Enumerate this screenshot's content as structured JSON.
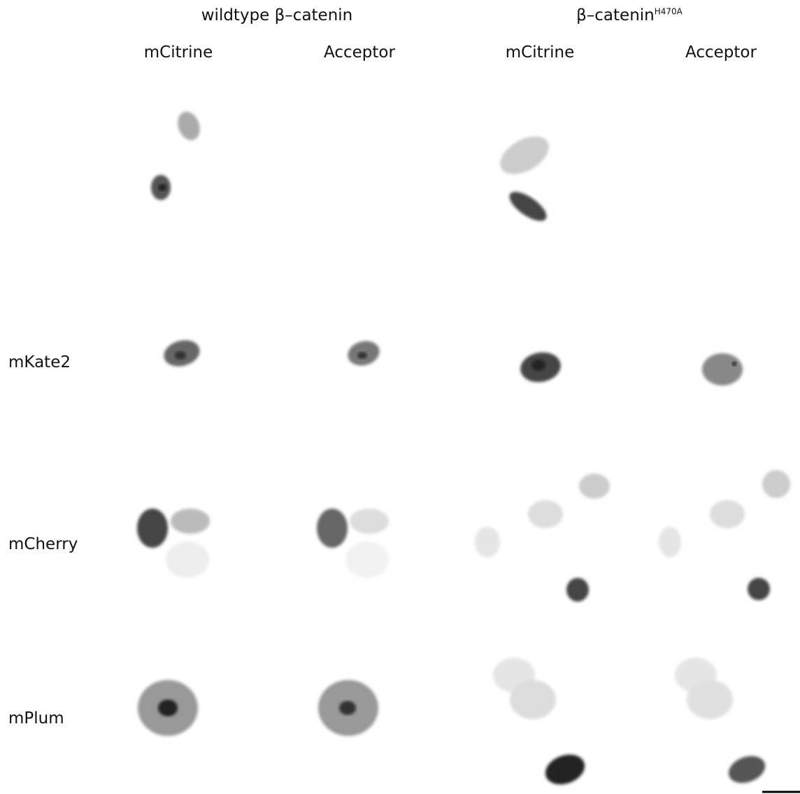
{
  "groups": [
    {
      "title": "wildtype β–catenin"
    },
    {
      "title": "β–catenin",
      "superscript": "H470A"
    }
  ],
  "columns": [
    "mCitrine",
    "Acceptor",
    "mCitrine",
    "Acceptor"
  ],
  "rows": [
    "mKate2",
    "mCherry",
    "mPlum"
  ]
}
